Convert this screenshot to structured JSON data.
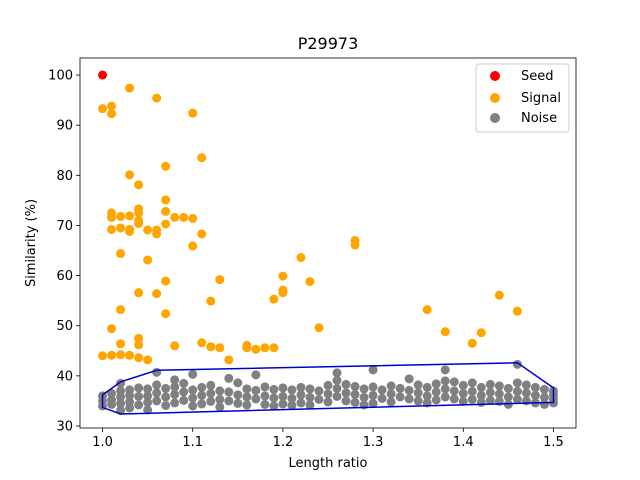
{
  "chart_data": {
    "type": "scatter",
    "title": "P29973",
    "xlabel": "Length ratio",
    "ylabel": "Similarity (%)",
    "xlim": [
      0.975,
      1.525
    ],
    "ylim": [
      29.6,
      103.4
    ],
    "xticks": [
      1.0,
      1.1,
      1.2,
      1.3,
      1.4,
      1.5
    ],
    "xtick_labels": [
      "1.0",
      "1.1",
      "1.2",
      "1.3",
      "1.4",
      "1.5"
    ],
    "yticks": [
      30,
      40,
      50,
      60,
      70,
      80,
      90,
      100
    ],
    "ytick_labels": [
      "30",
      "40",
      "50",
      "60",
      "70",
      "80",
      "90",
      "100"
    ],
    "legend_position": "top-right",
    "series": [
      {
        "name": "Seed",
        "color": "#ff0000",
        "points": [
          [
            1.0,
            100.0
          ]
        ]
      },
      {
        "name": "Signal",
        "color": "#ffa500",
        "points": [
          [
            1.0,
            93.3
          ],
          [
            1.01,
            93.8
          ],
          [
            1.01,
            92.3
          ],
          [
            1.03,
            97.4
          ],
          [
            1.06,
            95.4
          ],
          [
            1.1,
            92.4
          ],
          [
            1.11,
            83.5
          ],
          [
            1.07,
            81.8
          ],
          [
            1.03,
            80.1
          ],
          [
            1.04,
            78.1
          ],
          [
            1.07,
            75.1
          ],
          [
            1.07,
            72.8
          ],
          [
            1.08,
            71.6
          ],
          [
            1.09,
            71.6
          ],
          [
            1.1,
            71.4
          ],
          [
            1.01,
            72.5
          ],
          [
            1.01,
            71.6
          ],
          [
            1.02,
            71.8
          ],
          [
            1.03,
            71.9
          ],
          [
            1.04,
            73.3
          ],
          [
            1.04,
            72.5
          ],
          [
            1.04,
            71.0
          ],
          [
            1.04,
            70.4
          ],
          [
            1.01,
            69.2
          ],
          [
            1.02,
            69.5
          ],
          [
            1.03,
            69.2
          ],
          [
            1.03,
            68.8
          ],
          [
            1.05,
            69.1
          ],
          [
            1.06,
            69.1
          ],
          [
            1.06,
            68.3
          ],
          [
            1.07,
            70.3
          ],
          [
            1.11,
            68.3
          ],
          [
            1.1,
            65.9
          ],
          [
            1.02,
            64.4
          ],
          [
            1.05,
            63.1
          ],
          [
            1.22,
            63.6
          ],
          [
            1.28,
            67.0
          ],
          [
            1.28,
            66.1
          ],
          [
            1.2,
            59.9
          ],
          [
            1.13,
            59.2
          ],
          [
            1.07,
            58.9
          ],
          [
            1.23,
            58.8
          ],
          [
            1.2,
            57.1
          ],
          [
            1.2,
            56.6
          ],
          [
            1.04,
            56.6
          ],
          [
            1.06,
            56.4
          ],
          [
            1.19,
            55.3
          ],
          [
            1.12,
            54.9
          ],
          [
            1.02,
            53.2
          ],
          [
            1.07,
            52.4
          ],
          [
            1.36,
            53.2
          ],
          [
            1.44,
            56.1
          ],
          [
            1.46,
            52.9
          ],
          [
            1.01,
            49.4
          ],
          [
            1.24,
            49.6
          ],
          [
            1.38,
            48.8
          ],
          [
            1.42,
            48.6
          ],
          [
            1.04,
            47.5
          ],
          [
            1.41,
            46.5
          ],
          [
            1.02,
            46.4
          ],
          [
            1.04,
            46.2
          ],
          [
            1.08,
            46.0
          ],
          [
            1.11,
            46.6
          ],
          [
            1.12,
            45.8
          ],
          [
            1.13,
            45.6
          ],
          [
            1.16,
            46.1
          ],
          [
            1.16,
            45.6
          ],
          [
            1.17,
            45.3
          ],
          [
            1.18,
            45.6
          ],
          [
            1.19,
            45.6
          ],
          [
            1.0,
            44.0
          ],
          [
            1.01,
            44.1
          ],
          [
            1.02,
            44.2
          ],
          [
            1.03,
            44.1
          ],
          [
            1.04,
            43.6
          ],
          [
            1.05,
            43.2
          ],
          [
            1.14,
            43.2
          ]
        ]
      },
      {
        "name": "Noise",
        "color": "#808080",
        "points": [
          [
            1.0,
            36.0
          ],
          [
            1.0,
            35.0
          ],
          [
            1.0,
            34.0
          ],
          [
            1.01,
            36.5
          ],
          [
            1.01,
            35.2
          ],
          [
            1.01,
            34.3
          ],
          [
            1.02,
            38.5
          ],
          [
            1.02,
            37.0
          ],
          [
            1.02,
            35.8
          ],
          [
            1.02,
            34.5
          ],
          [
            1.02,
            33.1
          ],
          [
            1.03,
            37.2
          ],
          [
            1.03,
            36.1
          ],
          [
            1.03,
            34.8
          ],
          [
            1.03,
            33.6
          ],
          [
            1.04,
            37.6
          ],
          [
            1.04,
            35.9
          ],
          [
            1.04,
            34.2
          ],
          [
            1.05,
            37.4
          ],
          [
            1.05,
            36.0
          ],
          [
            1.05,
            34.7
          ],
          [
            1.05,
            33.2
          ],
          [
            1.06,
            40.7
          ],
          [
            1.06,
            38.2
          ],
          [
            1.06,
            36.6
          ],
          [
            1.06,
            35.0
          ],
          [
            1.07,
            37.5
          ],
          [
            1.07,
            35.8
          ],
          [
            1.07,
            34.1
          ],
          [
            1.08,
            39.2
          ],
          [
            1.08,
            37.8
          ],
          [
            1.08,
            36.3
          ],
          [
            1.08,
            34.6
          ],
          [
            1.09,
            38.5
          ],
          [
            1.09,
            36.8
          ],
          [
            1.09,
            35.1
          ],
          [
            1.1,
            40.3
          ],
          [
            1.1,
            37.2
          ],
          [
            1.1,
            35.6
          ],
          [
            1.1,
            34.0
          ],
          [
            1.11,
            37.7
          ],
          [
            1.11,
            36.1
          ],
          [
            1.11,
            34.4
          ],
          [
            1.12,
            38.1
          ],
          [
            1.12,
            36.5
          ],
          [
            1.12,
            34.9
          ],
          [
            1.13,
            37.0
          ],
          [
            1.13,
            35.3
          ],
          [
            1.13,
            33.8
          ],
          [
            1.14,
            39.5
          ],
          [
            1.14,
            36.8
          ],
          [
            1.14,
            35.0
          ],
          [
            1.15,
            38.6
          ],
          [
            1.15,
            36.2
          ],
          [
            1.15,
            34.5
          ],
          [
            1.16,
            37.4
          ],
          [
            1.16,
            35.8
          ],
          [
            1.16,
            34.2
          ],
          [
            1.17,
            40.2
          ],
          [
            1.17,
            37.1
          ],
          [
            1.17,
            35.4
          ],
          [
            1.18,
            37.8
          ],
          [
            1.18,
            36.0
          ],
          [
            1.18,
            34.3
          ],
          [
            1.19,
            37.3
          ],
          [
            1.19,
            35.6
          ],
          [
            1.19,
            34.0
          ],
          [
            1.2,
            37.6
          ],
          [
            1.2,
            35.9
          ],
          [
            1.2,
            34.4
          ],
          [
            1.21,
            37.2
          ],
          [
            1.21,
            35.5
          ],
          [
            1.21,
            34.1
          ],
          [
            1.22,
            37.7
          ],
          [
            1.22,
            36.2
          ],
          [
            1.22,
            34.6
          ],
          [
            1.23,
            37.4
          ],
          [
            1.23,
            35.7
          ],
          [
            1.23,
            34.2
          ],
          [
            1.24,
            37.0
          ],
          [
            1.24,
            35.3
          ],
          [
            1.25,
            38.1
          ],
          [
            1.25,
            36.4
          ],
          [
            1.25,
            34.8
          ],
          [
            1.26,
            40.6
          ],
          [
            1.26,
            39.1
          ],
          [
            1.26,
            37.5
          ],
          [
            1.26,
            35.9
          ],
          [
            1.27,
            38.3
          ],
          [
            1.27,
            36.6
          ],
          [
            1.27,
            35.0
          ],
          [
            1.28,
            37.9
          ],
          [
            1.28,
            36.3
          ],
          [
            1.28,
            34.7
          ],
          [
            1.29,
            37.4
          ],
          [
            1.29,
            35.7
          ],
          [
            1.29,
            34.2
          ],
          [
            1.3,
            41.2
          ],
          [
            1.3,
            37.8
          ],
          [
            1.3,
            36.1
          ],
          [
            1.3,
            34.5
          ],
          [
            1.31,
            37.2
          ],
          [
            1.31,
            35.5
          ],
          [
            1.32,
            38.0
          ],
          [
            1.32,
            36.4
          ],
          [
            1.32,
            34.8
          ],
          [
            1.33,
            37.5
          ],
          [
            1.33,
            35.8
          ],
          [
            1.34,
            39.4
          ],
          [
            1.34,
            37.1
          ],
          [
            1.34,
            35.4
          ],
          [
            1.35,
            38.2
          ],
          [
            1.35,
            36.6
          ],
          [
            1.35,
            35.0
          ],
          [
            1.36,
            37.7
          ],
          [
            1.36,
            36.0
          ],
          [
            1.36,
            34.6
          ],
          [
            1.37,
            38.4
          ],
          [
            1.37,
            36.8
          ],
          [
            1.37,
            35.2
          ],
          [
            1.38,
            41.2
          ],
          [
            1.38,
            39.0
          ],
          [
            1.38,
            37.4
          ],
          [
            1.38,
            35.8
          ],
          [
            1.39,
            38.8
          ],
          [
            1.39,
            37.0
          ],
          [
            1.39,
            35.4
          ],
          [
            1.4,
            38.1
          ],
          [
            1.4,
            36.5
          ],
          [
            1.4,
            34.9
          ],
          [
            1.41,
            38.6
          ],
          [
            1.41,
            36.9
          ],
          [
            1.41,
            35.3
          ],
          [
            1.42,
            37.7
          ],
          [
            1.42,
            36.1
          ],
          [
            1.42,
            34.7
          ],
          [
            1.43,
            38.3
          ],
          [
            1.43,
            36.7
          ],
          [
            1.43,
            35.1
          ],
          [
            1.44,
            38.0
          ],
          [
            1.44,
            36.4
          ],
          [
            1.44,
            34.9
          ],
          [
            1.45,
            37.5
          ],
          [
            1.45,
            35.8
          ],
          [
            1.45,
            34.3
          ],
          [
            1.46,
            42.3
          ],
          [
            1.46,
            38.6
          ],
          [
            1.46,
            36.9
          ],
          [
            1.46,
            35.3
          ],
          [
            1.47,
            38.2
          ],
          [
            1.47,
            36.6
          ],
          [
            1.47,
            35.0
          ],
          [
            1.48,
            37.7
          ],
          [
            1.48,
            36.1
          ],
          [
            1.48,
            34.6
          ],
          [
            1.49,
            37.3
          ],
          [
            1.49,
            35.7
          ],
          [
            1.49,
            34.3
          ],
          [
            1.5,
            37.0
          ],
          [
            1.5,
            36.2
          ],
          [
            1.5,
            35.4
          ],
          [
            1.5,
            34.6
          ]
        ]
      }
    ],
    "hull": {
      "color": "#0000cc",
      "points": [
        [
          1.0,
          36.2
        ],
        [
          1.02,
          38.8
        ],
        [
          1.06,
          41.1
        ],
        [
          1.46,
          42.6
        ],
        [
          1.5,
          37.6
        ],
        [
          1.5,
          34.7
        ],
        [
          1.02,
          32.4
        ],
        [
          1.0,
          33.7
        ]
      ]
    }
  }
}
